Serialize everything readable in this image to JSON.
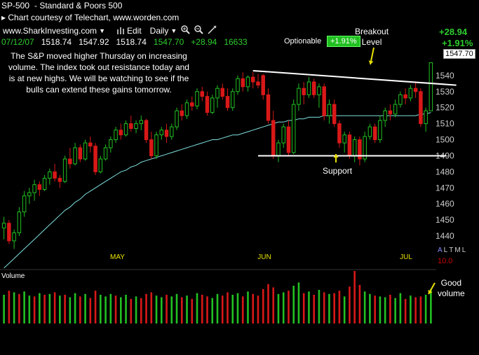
{
  "header": {
    "symbol": "SP-500",
    "name": "-  Standard & Poors 500",
    "courtesy": "▸ Chart courtesy of Telechart, www.worden.com"
  },
  "toolbar": {
    "site": "www.SharkInvesting.com",
    "edit": "Edit",
    "period": "Daily"
  },
  "quote": {
    "date": "07/12/07",
    "open": "1518.74",
    "high": "1547.92",
    "low": "1518.74",
    "close": "1547.70",
    "change": "+28.94",
    "volume": "16633",
    "change_big": "+28.94",
    "pct_big": "+1.91%",
    "last_price": "1547.70"
  },
  "optionable": {
    "label": "Optionable",
    "pct": "+1.91%"
  },
  "note": "The S&P moved higher Thursday on increasing volume.  The index took out resistance today and is at new highs.  We will be watching to see if the bulls can extend these gains tomorrow.",
  "annotations": {
    "breakout": "Breakout\nLevel",
    "support": "Support",
    "good_volume": "Good\nvolume"
  },
  "indicator_codes": [
    "A",
    "L",
    "T",
    "M",
    "L"
  ],
  "indicator_value": "10.0",
  "volume_label": "Volume",
  "colors": {
    "up": "#22c022",
    "down": "#d81818",
    "ma": "#7fe0e0",
    "month": "#e8e000",
    "line": "#ffffff"
  },
  "chart_data": {
    "type": "candlestick",
    "ylim": [
      1430,
      1560
    ],
    "y_ticks": [
      1440,
      1450,
      1460,
      1470,
      1480,
      1490,
      1500,
      1510,
      1520,
      1530,
      1540
    ],
    "month_labels": [
      {
        "label": "MAY",
        "index": 22
      },
      {
        "label": "JUN",
        "index": 51
      },
      {
        "label": "JUL",
        "index": 79
      }
    ],
    "trendlines": [
      {
        "name": "resistance",
        "from": [
          49,
          1543
        ],
        "to": [
          89,
          1534
        ]
      },
      {
        "name": "support",
        "from": [
          50,
          1490
        ],
        "to": [
          87,
          1490
        ]
      }
    ],
    "candles": [
      [
        1445,
        1452,
        1438,
        1448
      ],
      [
        1448,
        1450,
        1435,
        1437
      ],
      [
        1437,
        1444,
        1432,
        1442
      ],
      [
        1442,
        1458,
        1440,
        1455
      ],
      [
        1455,
        1468,
        1452,
        1465
      ],
      [
        1465,
        1470,
        1460,
        1467
      ],
      [
        1467,
        1475,
        1462,
        1472
      ],
      [
        1472,
        1474,
        1465,
        1469
      ],
      [
        1469,
        1478,
        1468,
        1476
      ],
      [
        1476,
        1482,
        1472,
        1480
      ],
      [
        1480,
        1485,
        1474,
        1476
      ],
      [
        1476,
        1478,
        1470,
        1474
      ],
      [
        1474,
        1490,
        1473,
        1488
      ],
      [
        1488,
        1495,
        1482,
        1485
      ],
      [
        1485,
        1498,
        1484,
        1495
      ],
      [
        1495,
        1497,
        1486,
        1488
      ],
      [
        1488,
        1500,
        1487,
        1498
      ],
      [
        1498,
        1502,
        1492,
        1496
      ],
      [
        1496,
        1498,
        1478,
        1480
      ],
      [
        1480,
        1490,
        1479,
        1488
      ],
      [
        1488,
        1497,
        1487,
        1495
      ],
      [
        1495,
        1502,
        1492,
        1500
      ],
      [
        1500,
        1508,
        1498,
        1506
      ],
      [
        1506,
        1510,
        1500,
        1503
      ],
      [
        1503,
        1512,
        1502,
        1510
      ],
      [
        1510,
        1515,
        1505,
        1507
      ],
      [
        1507,
        1512,
        1504,
        1510
      ],
      [
        1510,
        1515,
        1506,
        1512
      ],
      [
        1512,
        1513,
        1498,
        1500
      ],
      [
        1500,
        1505,
        1488,
        1490
      ],
      [
        1490,
        1505,
        1488,
        1503
      ],
      [
        1503,
        1508,
        1500,
        1506
      ],
      [
        1506,
        1510,
        1498,
        1502
      ],
      [
        1502,
        1510,
        1500,
        1508
      ],
      [
        1508,
        1520,
        1506,
        1518
      ],
      [
        1518,
        1522,
        1512,
        1515
      ],
      [
        1515,
        1525,
        1513,
        1523
      ],
      [
        1523,
        1527,
        1518,
        1521
      ],
      [
        1521,
        1532,
        1519,
        1530
      ],
      [
        1530,
        1533,
        1524,
        1527
      ],
      [
        1527,
        1530,
        1515,
        1517
      ],
      [
        1517,
        1528,
        1516,
        1526
      ],
      [
        1526,
        1534,
        1520,
        1532
      ],
      [
        1532,
        1535,
        1525,
        1527
      ],
      [
        1527,
        1532,
        1518,
        1520
      ],
      [
        1520,
        1532,
        1518,
        1530
      ],
      [
        1530,
        1540,
        1528,
        1538
      ],
      [
        1538,
        1542,
        1530,
        1533
      ],
      [
        1533,
        1540,
        1530,
        1539
      ],
      [
        1539,
        1542,
        1532,
        1536
      ],
      [
        1536,
        1541,
        1532,
        1534
      ],
      [
        1540,
        1541,
        1525,
        1528
      ],
      [
        1528,
        1532,
        1510,
        1512
      ],
      [
        1512,
        1518,
        1488,
        1490
      ],
      [
        1490,
        1500,
        1486,
        1498
      ],
      [
        1498,
        1510,
        1495,
        1508
      ],
      [
        1508,
        1512,
        1490,
        1492
      ],
      [
        1492,
        1525,
        1491,
        1522
      ],
      [
        1522,
        1535,
        1518,
        1532
      ],
      [
        1532,
        1536,
        1522,
        1528
      ],
      [
        1528,
        1539,
        1526,
        1536
      ],
      [
        1536,
        1538,
        1526,
        1528
      ],
      [
        1528,
        1535,
        1520,
        1533
      ],
      [
        1533,
        1535,
        1512,
        1515
      ],
      [
        1515,
        1525,
        1510,
        1522
      ],
      [
        1522,
        1525,
        1508,
        1510
      ],
      [
        1510,
        1512,
        1495,
        1498
      ],
      [
        1498,
        1505,
        1492,
        1503
      ],
      [
        1503,
        1505,
        1488,
        1490
      ],
      [
        1490,
        1502,
        1486,
        1500
      ],
      [
        1500,
        1502,
        1484,
        1488
      ],
      [
        1488,
        1505,
        1486,
        1502
      ],
      [
        1502,
        1510,
        1500,
        1508
      ],
      [
        1508,
        1510,
        1498,
        1500
      ],
      [
        1500,
        1515,
        1498,
        1512
      ],
      [
        1512,
        1520,
        1508,
        1518
      ],
      [
        1518,
        1522,
        1512,
        1516
      ],
      [
        1516,
        1525,
        1514,
        1522
      ],
      [
        1522,
        1530,
        1520,
        1528
      ],
      [
        1528,
        1532,
        1522,
        1526
      ],
      [
        1526,
        1534,
        1524,
        1532
      ],
      [
        1532,
        1536,
        1526,
        1530
      ],
      [
        1530,
        1532,
        1508,
        1510
      ],
      [
        1510,
        1520,
        1505,
        1518
      ],
      [
        1518,
        1548,
        1518,
        1548
      ]
    ],
    "ma": [
      1420,
      1423,
      1426,
      1429,
      1432,
      1435,
      1438,
      1441,
      1444,
      1447,
      1450,
      1453,
      1456,
      1458,
      1461,
      1463,
      1466,
      1468,
      1470,
      1472,
      1474,
      1476,
      1478,
      1480,
      1481,
      1483,
      1484,
      1486,
      1487,
      1488,
      1489,
      1490,
      1491,
      1492,
      1493,
      1494,
      1495,
      1496,
      1497,
      1498,
      1499,
      1500,
      1500,
      1501,
      1502,
      1503,
      1503,
      1504,
      1505,
      1506,
      1507,
      1508,
      1509,
      1510,
      1511,
      1511,
      1512,
      1512,
      1513,
      1513,
      1514,
      1514,
      1514,
      1515,
      1515,
      1515,
      1515,
      1515,
      1515,
      1515,
      1515,
      1515,
      1515,
      1515,
      1515,
      1515,
      1515,
      1515,
      1515,
      1515,
      1515,
      1515,
      1516,
      1516,
      1517
    ],
    "volume": [
      [
        35,
        1
      ],
      [
        40,
        0
      ],
      [
        38,
        1
      ],
      [
        36,
        0
      ],
      [
        39,
        1
      ],
      [
        34,
        1
      ],
      [
        33,
        0
      ],
      [
        37,
        1
      ],
      [
        35,
        0
      ],
      [
        36,
        1
      ],
      [
        38,
        0
      ],
      [
        34,
        1
      ],
      [
        35,
        0
      ],
      [
        32,
        1
      ],
      [
        37,
        1
      ],
      [
        33,
        0
      ],
      [
        36,
        1
      ],
      [
        31,
        0
      ],
      [
        40,
        0
      ],
      [
        35,
        1
      ],
      [
        33,
        1
      ],
      [
        36,
        1
      ],
      [
        34,
        0
      ],
      [
        32,
        1
      ],
      [
        35,
        1
      ],
      [
        30,
        0
      ],
      [
        33,
        1
      ],
      [
        31,
        0
      ],
      [
        36,
        0
      ],
      [
        38,
        0
      ],
      [
        34,
        1
      ],
      [
        32,
        1
      ],
      [
        35,
        0
      ],
      [
        33,
        1
      ],
      [
        36,
        1
      ],
      [
        32,
        0
      ],
      [
        34,
        1
      ],
      [
        30,
        0
      ],
      [
        37,
        1
      ],
      [
        35,
        0
      ],
      [
        33,
        0
      ],
      [
        31,
        1
      ],
      [
        36,
        1
      ],
      [
        34,
        0
      ],
      [
        38,
        0
      ],
      [
        35,
        1
      ],
      [
        37,
        1
      ],
      [
        33,
        0
      ],
      [
        39,
        1
      ],
      [
        36,
        0
      ],
      [
        34,
        0
      ],
      [
        42,
        0
      ],
      [
        48,
        0
      ],
      [
        44,
        0
      ],
      [
        36,
        1
      ],
      [
        38,
        1
      ],
      [
        40,
        0
      ],
      [
        46,
        1
      ],
      [
        50,
        1
      ],
      [
        37,
        0
      ],
      [
        39,
        1
      ],
      [
        35,
        0
      ],
      [
        41,
        1
      ],
      [
        38,
        0
      ],
      [
        36,
        1
      ],
      [
        37,
        0
      ],
      [
        40,
        0
      ],
      [
        33,
        1
      ],
      [
        45,
        0
      ],
      [
        64,
        0
      ],
      [
        47,
        0
      ],
      [
        39,
        1
      ],
      [
        36,
        1
      ],
      [
        34,
        0
      ],
      [
        33,
        1
      ],
      [
        32,
        1
      ],
      [
        35,
        0
      ],
      [
        31,
        1
      ],
      [
        37,
        1
      ],
      [
        30,
        0
      ],
      [
        34,
        1
      ],
      [
        32,
        0
      ],
      [
        33,
        0
      ],
      [
        35,
        1
      ],
      [
        42,
        1
      ]
    ]
  }
}
